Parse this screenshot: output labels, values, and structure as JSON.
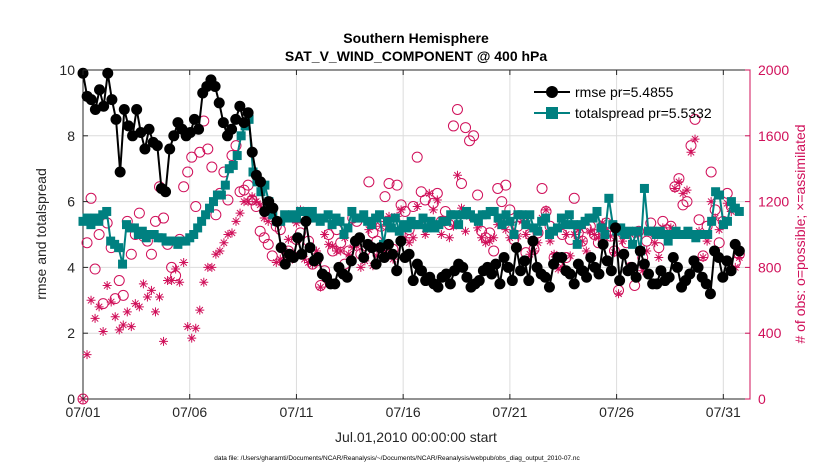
{
  "chart_data": {
    "type": "line",
    "title": "Southern Hemisphere",
    "subtitle": "SAT_V_WIND_COMPONENT @ 400 hPa",
    "xlabel": "Jul.01,2010 00:00:00 start",
    "ylabel_left": "rmse and totalspread",
    "ylabel_right": "# of obs: o=possible; ×=assimilated",
    "footer": "data file: /Users/gharamti/Documents/NCAR/Reanalysis/~/Documents/NCAR/Reanalysis/webpub/obs_diag_output_2010-07.nc",
    "x_tick_labels": [
      "07/01",
      "07/06",
      "07/11",
      "07/16",
      "07/21",
      "07/26",
      "07/31"
    ],
    "x_tick_days": [
      0,
      5,
      10,
      15,
      20,
      25,
      30
    ],
    "xlim_days": [
      0,
      31.25
    ],
    "y_left_ticks": [
      "0",
      "2",
      "4",
      "6",
      "8",
      "10"
    ],
    "y_left_range": [
      0,
      10
    ],
    "y_right_ticks": [
      "0",
      "400",
      "800",
      "1200",
      "1600",
      "2000"
    ],
    "y_right_range": [
      0,
      2000
    ],
    "grid": true,
    "legend_position": "top-right",
    "colors": {
      "rmse": "#000000",
      "spread": "#008080",
      "obs": "#d0105a",
      "grid": "#dcdcdc",
      "axis": "#262626"
    },
    "series": [
      {
        "name": "rmse pr=5.4855",
        "axis": "left",
        "marker": "circle",
        "values": [
          9.9,
          9.2,
          9.1,
          8.8,
          9.4,
          8.9,
          9.9,
          9.1,
          8.5,
          6.9,
          8.8,
          8.3,
          8.0,
          8.8,
          8.1,
          7.6,
          8.2,
          7.8,
          7.7,
          6.4,
          6.3,
          7.6,
          8.0,
          8.4,
          8.2,
          8.0,
          8.1,
          8.5,
          8.2,
          9.3,
          9.5,
          9.7,
          9.5,
          9.0,
          8.4,
          8.0,
          8.2,
          8.5,
          8.9,
          8.4,
          8.7,
          7.5,
          6.8,
          6.6,
          5.7,
          6.0,
          5.8,
          5.4,
          4.6,
          4.1,
          4.4,
          4.3,
          4.9,
          4.4,
          5.4,
          4.6,
          4.2,
          4.3,
          3.8,
          3.7,
          3.5,
          3.5,
          4.0,
          3.8,
          3.7,
          4.2,
          4.8,
          4.9,
          4.3,
          4.7,
          4.6,
          4.1,
          4.6,
          4.3,
          4.7,
          4.4,
          3.9,
          4.8,
          4.3,
          4.4,
          3.6,
          4.1,
          3.9,
          3.6,
          3.7,
          3.5,
          3.4,
          3.7,
          3.8,
          3.5,
          3.9,
          4.1,
          4.0,
          3.7,
          3.4,
          3.5,
          3.6,
          3.9,
          4.0,
          3.8,
          4.1,
          3.5,
          4.3,
          4.0,
          3.6,
          4.6,
          3.9,
          4.2,
          3.6,
          4.8,
          4.0,
          3.8,
          3.7,
          3.4,
          4.1,
          4.3,
          4.3,
          3.9,
          3.8,
          3.5,
          4.1,
          3.9,
          3.7,
          4.3,
          4.0,
          3.8,
          4.7,
          4.2,
          3.9,
          5.2,
          3.6,
          4.4,
          3.9,
          4.0,
          3.7,
          4.5,
          4.1,
          3.8,
          3.5,
          3.5,
          3.9,
          3.6,
          3.7,
          4.3,
          4.0,
          3.4,
          3.6,
          3.8,
          4.2,
          4.0,
          3.7,
          3.5,
          3.2,
          4.5,
          4.3,
          3.7,
          4.2,
          3.9,
          4.7,
          4.5
        ]
      },
      {
        "name": "totalspread pr=5.5332",
        "axis": "left",
        "marker": "square",
        "values": [
          5.4,
          5.5,
          5.3,
          5.5,
          5.4,
          5.6,
          5.7,
          4.8,
          4.7,
          4.6,
          4.1,
          5.3,
          5.2,
          5.2,
          5.0,
          5.1,
          4.9,
          5.0,
          5.0,
          4.9,
          4.9,
          4.8,
          4.8,
          4.8,
          4.7,
          4.8,
          4.8,
          4.9,
          5.0,
          5.2,
          5.4,
          5.6,
          5.8,
          6.0,
          6.2,
          6.2,
          6.5,
          7.0,
          7.1,
          7.4,
          8.0,
          8.3,
          8.5,
          6.9,
          6.6,
          6.3,
          6.5,
          6.0,
          5.6,
          5.4,
          5.4,
          5.6,
          5.5,
          5.6,
          5.5,
          5.7,
          5.7,
          5.5,
          5.7,
          5.5,
          5.4,
          5.5,
          5.6,
          5.3,
          5.5,
          5.4,
          5.0,
          5.2,
          5.7,
          5.5,
          5.5,
          5.6,
          5.4,
          5.3,
          5.5,
          5.6,
          4.7,
          5.4,
          5.2,
          5.5,
          5.1,
          5.3,
          5.2,
          5.4,
          5.3,
          5.3,
          5.5,
          5.2,
          5.4,
          5.2,
          5.3,
          5.4,
          5.4,
          5.6,
          5.6,
          5.3,
          5.6,
          5.7,
          5.6,
          5.5,
          5.4,
          5.6,
          5.6,
          5.7,
          5.7,
          5.5,
          5.3,
          5.6,
          5.4,
          5.0,
          5.6,
          5.6,
          5.3,
          5.6,
          5.2,
          5.1,
          5.4,
          5.5,
          5.0,
          5.1,
          5.2,
          5.5,
          5.3,
          5.6,
          5.3,
          4.7,
          5.3,
          5.4,
          5.5,
          5.5,
          5.7,
          5.2,
          5.0,
          6.1,
          5.3,
          5.1,
          5.2,
          5.0,
          5.1,
          4.7,
          5.1,
          4.5,
          6.4,
          5.1,
          5.1,
          5.0,
          5.1,
          5.0,
          4.8,
          5.0,
          5.1,
          5.0,
          5.0,
          5.1,
          5.0,
          4.9,
          5.0,
          5.0,
          5.0,
          5.4,
          6.3,
          6.2,
          5.3,
          5.4,
          6.0,
          5.8,
          5.7
        ]
      },
      {
        "name": "possible",
        "axis": "right",
        "marker": "open-circle",
        "values": [
          0,
          950,
          1220,
          790,
          1000,
          580,
          1070,
          920,
          610,
          720,
          630,
          1080,
          880,
          1000,
          1130,
          990,
          960,
          880,
          1080,
          1290,
          1100,
          940,
          800,
          750,
          970,
          1290,
          1380,
          1470,
          1170,
          1500,
          1690,
          1520,
          1410,
          1120,
          1250,
          1380,
          1210,
          1480,
          1540,
          1260,
          1270,
          1300,
          1210,
          1170,
          1020,
          980,
          940,
          870,
          1050,
          1030,
          830,
          900,
          870,
          970,
          1010,
          1110,
          960,
          820,
          840,
          690,
          780,
          1000,
          900,
          1030,
          950,
          820,
          900,
          1100,
          1080,
          880,
          900,
          1320,
          1010,
          960,
          1050,
          1230,
          1310,
          910,
          1300,
          1180,
          1140,
          1030,
          1170,
          1470,
          1260,
          1210,
          1060,
          1190,
          1250,
          1080,
          1140,
          1060,
          1660,
          1760,
          1310,
          1650,
          1570,
          1600,
          1240,
          1020,
          980,
          1010,
          900,
          1280,
          1200,
          1300,
          1150,
          970,
          1050,
          1100,
          890,
          1000,
          910,
          1010,
          1280,
          1140,
          1050,
          860,
          830,
          1000,
          860,
          970,
          1220,
          1010,
          960,
          1040,
          1050,
          1000,
          950,
          1030,
          1070,
          990,
          900,
          660,
          1010,
          950,
          800,
          690,
          1020,
          860,
          960,
          1070,
          1010,
          920,
          1080,
          1030,
          1050,
          1290,
          1340,
          1180,
          1200,
          1540,
          1700,
          1090,
          870,
          1050,
          1380,
          1150,
          950,
          1080,
          1250,
          1170,
          830,
          880
        ]
      },
      {
        "name": "assimilated",
        "axis": "right",
        "marker": "asterisk",
        "values": [
          0,
          270,
          600,
          490,
          560,
          410,
          690,
          590,
          500,
          420,
          450,
          530,
          440,
          580,
          560,
          700,
          620,
          660,
          530,
          620,
          350,
          720,
          720,
          790,
          710,
          830,
          440,
          370,
          430,
          540,
          710,
          800,
          800,
          880,
          900,
          950,
          1000,
          1010,
          1080,
          1130,
          1200,
          1200,
          1230,
          1200,
          1180,
          1100,
          1080,
          1140,
          830,
          850,
          900,
          970,
          850,
          1070,
          1150,
          850,
          830,
          820,
          900,
          680,
          1000,
          940,
          930,
          900,
          900,
          980,
          880,
          920,
          930,
          800,
          840,
          1030,
          810,
          870,
          1050,
          890,
          1110,
          850,
          1110,
          1150,
          980,
          950,
          980,
          1170,
          1060,
          1000,
          1250,
          1150,
          1210,
          1000,
          1080,
          980,
          1050,
          1360,
          1160,
          1020,
          1110,
          1100,
          1040,
          980,
          950,
          960,
          980,
          1060,
          1100,
          1030,
          980,
          1010,
          990,
          1080,
          1000,
          880,
          900,
          950,
          1100,
          1150,
          960,
          880,
          790,
          800,
          1000,
          870,
          1000,
          1030,
          960,
          900,
          1020,
          1000,
          980,
          1070,
          1020,
          990,
          890,
          640,
          960,
          1000,
          1000,
          760,
          1000,
          780,
          900,
          1020,
          950,
          860,
          1040,
          1000,
          1040,
          1280,
          1320,
          1250,
          1270,
          1500,
          1580,
          1020,
          860,
          960,
          1200,
          1100,
          1030,
          1070,
          1190,
          1140,
          800,
          860
        ]
      }
    ]
  }
}
